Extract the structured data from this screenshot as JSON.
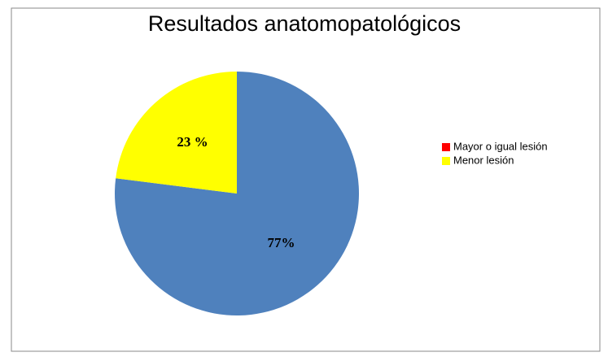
{
  "chart_data": {
    "type": "pie",
    "title": "Resultados anatomopatológicos",
    "categories": [
      "Mayor o igual lesión",
      "Menor lesión"
    ],
    "values": [
      77,
      23
    ],
    "value_labels": [
      "77%",
      "23 %"
    ],
    "colors": [
      "#4f81bd",
      "#ffff00"
    ],
    "legend_colors": [
      "#ff0000",
      "#ffff00"
    ]
  }
}
